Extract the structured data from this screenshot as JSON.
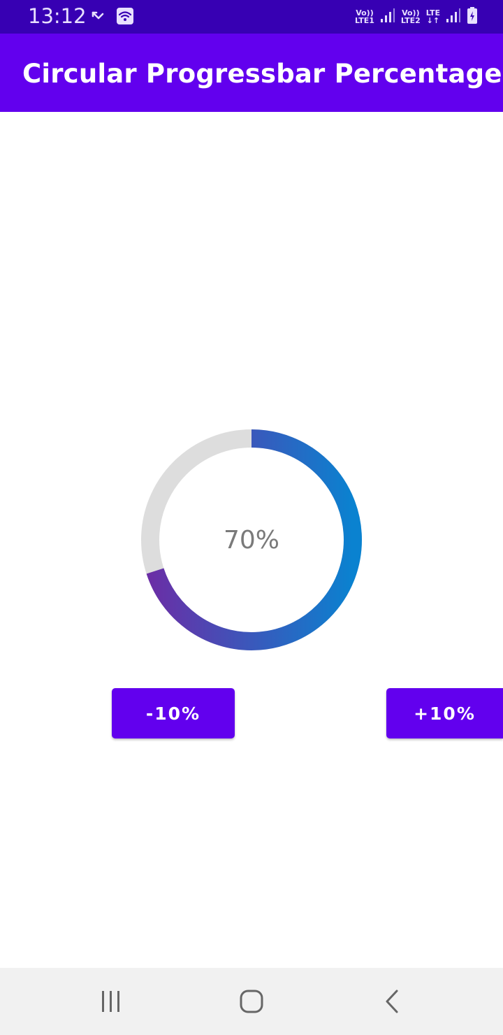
{
  "status_bar": {
    "time": "13:12",
    "sim1": {
      "top": "Vo))",
      "bottom": "LTE1"
    },
    "sim2": {
      "top": "Vo))",
      "bottom": "LTE2"
    },
    "sim2_data": {
      "top": "LTE",
      "bottom": "↓↑"
    },
    "icons": [
      "missed-call-icon",
      "wifi-icon",
      "signal-icon",
      "signal-icon",
      "battery-charging-icon"
    ]
  },
  "app_bar": {
    "title": "Circular Progressbar Percentage"
  },
  "progress": {
    "value": 70,
    "label": "70%",
    "track_color": "#dddddd",
    "gradient_start": "#6a2ea6",
    "gradient_end": "#0a82d0"
  },
  "buttons": {
    "decrease_label": "-10%",
    "increase_label": "+10%"
  },
  "nav_bar": {
    "icons": [
      "recent-apps-icon",
      "home-icon",
      "back-icon"
    ]
  },
  "colors": {
    "status_bar": "#3700b3",
    "primary": "#6200ee",
    "nav_bar": "#f1f1f1"
  }
}
